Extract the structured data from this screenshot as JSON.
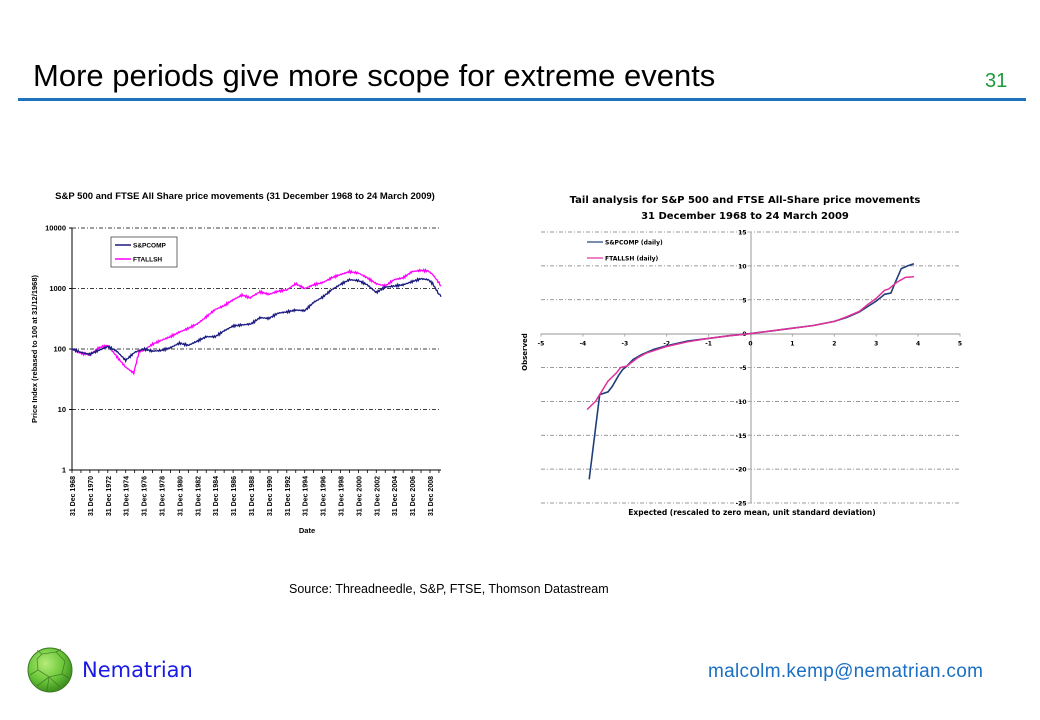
{
  "slide": {
    "title": "More periods give more scope for extreme events",
    "page_number": "31",
    "source": "Source: Threadneedle, S&P, FTSE, Thomson Datastream",
    "brand": "Nematrian",
    "email": "malcolm.kemp@nematrian.com",
    "colors": {
      "rule": "#1e73be",
      "page_number": "#1a9b3a",
      "brand": "#1a1ae6",
      "email": "#1a6fc4"
    }
  },
  "chart_data": [
    {
      "type": "line",
      "title": "S&P 500 and FTSE All Share price movements (31 December 1968 to 24 March 2009)",
      "xlabel": "Date",
      "ylabel": "Price Index (rebased to 100 at 31/12/1968)",
      "yscale": "log",
      "ylim": [
        1,
        10000
      ],
      "yticks": [
        "1",
        "10",
        "100",
        "1000",
        "10000"
      ],
      "ytick_values": [
        1,
        10,
        100,
        1000,
        10000
      ],
      "xlim": [
        1968,
        2009.23
      ],
      "xticks": [
        "31 Dec 1968",
        "31 Dec 1970",
        "31 Dec 1972",
        "31 Dec 1974",
        "31 Dec 1976",
        "31 Dec 1978",
        "31 Dec 1980",
        "31 Dec 1982",
        "31 Dec 1984",
        "31 Dec 1986",
        "31 Dec 1988",
        "31 Dec 1990",
        "31 Dec 1992",
        "31 Dec 1994",
        "31 Dec 1996",
        "31 Dec 1998",
        "31 Dec 2000",
        "31 Dec 2002",
        "31 Dec 2004",
        "31 Dec 2006",
        "31 Dec 2008"
      ],
      "xtick_values": [
        1968,
        1970,
        1972,
        1974,
        1976,
        1978,
        1980,
        1982,
        1984,
        1986,
        1988,
        1990,
        1992,
        1994,
        1996,
        1998,
        2000,
        2002,
        2004,
        2006,
        2008
      ],
      "grid": "horizontal dashed",
      "legend": "top-left",
      "series": [
        {
          "name": "S&PCOMP",
          "color": "#1a1a80",
          "x": [
            1968,
            1969,
            1970,
            1971,
            1972,
            1973,
            1974,
            1975,
            1976,
            1977,
            1978,
            1979,
            1980,
            1981,
            1982,
            1983,
            1984,
            1985,
            1986,
            1987,
            1988,
            1989,
            1990,
            1991,
            1992,
            1993,
            1994,
            1995,
            1996,
            1997,
            1998,
            1999,
            2000,
            2001,
            2002,
            2003,
            2004,
            2005,
            2006,
            2007,
            2007.8,
            2008.3,
            2008.9,
            2009.23
          ],
          "values": [
            100,
            88,
            82,
            95,
            110,
            92,
            65,
            88,
            100,
            92,
            95,
            105,
            125,
            115,
            135,
            160,
            160,
            200,
            240,
            250,
            260,
            330,
            320,
            390,
            410,
            440,
            430,
            590,
            720,
            950,
            1170,
            1400,
            1350,
            1150,
            860,
            1050,
            1100,
            1150,
            1300,
            1450,
            1400,
            1200,
            850,
            730
          ]
        },
        {
          "name": "FTALLSH",
          "color": "#ff00ff",
          "x": [
            1968,
            1969,
            1970,
            1971,
            1972,
            1973,
            1974,
            1974.9,
            1975.5,
            1976,
            1977,
            1978,
            1979,
            1980,
            1981,
            1982,
            1983,
            1984,
            1985,
            1986,
            1987,
            1987.9,
            1988,
            1989,
            1990,
            1991,
            1992,
            1993,
            1994,
            1995,
            1996,
            1997,
            1998,
            1999,
            2000,
            2001,
            2002,
            2003,
            2004,
            2005,
            2006,
            2007,
            2007.8,
            2008.3,
            2008.9,
            2009.23
          ],
          "values": [
            100,
            85,
            80,
            105,
            115,
            75,
            50,
            40,
            90,
            95,
            120,
            140,
            160,
            190,
            220,
            260,
            340,
            450,
            520,
            650,
            780,
            700,
            720,
            880,
            800,
            900,
            950,
            1200,
            1000,
            1150,
            1250,
            1500,
            1700,
            1900,
            1800,
            1500,
            1200,
            1100,
            1400,
            1500,
            1900,
            2000,
            1950,
            1700,
            1300,
            1100
          ]
        }
      ]
    },
    {
      "type": "line",
      "title": "Tail analysis for S&P 500 and FTSE All-Share price movements",
      "subtitle": "31 December 1968 to 24 March 2009",
      "xlabel": "Expected (rescaled to zero mean, unit standard deviation)",
      "ylabel": "Observed",
      "xlim": [
        -5,
        5
      ],
      "ylim": [
        -25,
        15
      ],
      "xticks": [
        "-5",
        "-4",
        "-3",
        "-2",
        "-1",
        "0",
        "1",
        "2",
        "3",
        "4",
        "5"
      ],
      "xtick_values": [
        -5,
        -4,
        -3,
        -2,
        -1,
        0,
        1,
        2,
        3,
        4,
        5
      ],
      "yticks": [
        "15",
        "10",
        "5",
        "0",
        "-5",
        "-10",
        "-15",
        "-20",
        "-25"
      ],
      "ytick_values": [
        15,
        10,
        5,
        0,
        -5,
        -10,
        -15,
        -20,
        -25
      ],
      "grid": "horizontal dashed",
      "legend": "top-left",
      "series": [
        {
          "name": "S&PCOMP (daily)",
          "color": "#1f3f7a",
          "x": [
            -3.85,
            -3.6,
            -3.4,
            -3.3,
            -3.15,
            -3.05,
            -2.95,
            -2.8,
            -2.6,
            -2.3,
            -2.0,
            -1.5,
            -1.0,
            -0.5,
            0,
            0.5,
            1.0,
            1.5,
            2.0,
            2.3,
            2.6,
            2.8,
            3.0,
            3.1,
            3.2,
            3.35,
            3.45,
            3.6,
            3.75,
            3.9
          ],
          "values": [
            -21.5,
            -9.0,
            -8.6,
            -7.8,
            -6.2,
            -5.3,
            -4.8,
            -3.8,
            -3.1,
            -2.3,
            -1.8,
            -1.1,
            -0.7,
            -0.3,
            0,
            0.4,
            0.8,
            1.2,
            1.8,
            2.4,
            3.2,
            4.0,
            4.8,
            5.3,
            5.8,
            6.0,
            7.5,
            9.6,
            10.0,
            10.3
          ]
        },
        {
          "name": "FTALLSH (daily)",
          "color": "#e0309a",
          "x": [
            -3.9,
            -3.7,
            -3.55,
            -3.4,
            -3.2,
            -3.1,
            -2.95,
            -2.7,
            -2.5,
            -2.2,
            -2.0,
            -1.5,
            -1.0,
            -0.5,
            0,
            0.5,
            1.0,
            1.5,
            2.0,
            2.3,
            2.6,
            2.8,
            3.0,
            3.2,
            3.3,
            3.5,
            3.7,
            3.9
          ],
          "values": [
            -11.2,
            -10.0,
            -8.5,
            -7.0,
            -5.8,
            -5.0,
            -4.8,
            -3.6,
            -2.9,
            -2.3,
            -1.9,
            -1.2,
            -0.7,
            -0.3,
            0,
            0.4,
            0.8,
            1.2,
            1.8,
            2.5,
            3.3,
            4.3,
            5.2,
            6.4,
            6.6,
            7.6,
            8.3,
            8.4
          ]
        }
      ]
    }
  ]
}
